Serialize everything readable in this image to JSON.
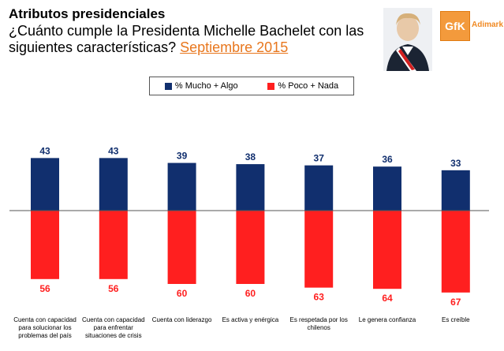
{
  "header": {
    "title": "Atributos presidenciales",
    "subtitle": "¿Cuánto cumple la Presidenta Michelle Bachelet con las siguientes características?",
    "date": "Septiembre 2015"
  },
  "logo": {
    "mark": "GfK",
    "name": "Adimark"
  },
  "colors": {
    "positive": "#112f6e",
    "negative": "#ff1f1f",
    "accent": "#e8771e"
  },
  "chart_data": {
    "type": "bar",
    "categories": [
      "Cuenta con capacidad para solucionar los problemas del país",
      "Cuenta con capacidad para enfrentar situaciones de crisis",
      "Cuenta con liderazgo",
      "Es activa y enérgica",
      "Es respetada por los chilenos",
      "Le genera confianza",
      "Es creíble"
    ],
    "category_lines": [
      [
        "Cuenta con capacidad",
        "para solucionar los",
        "problemas del país"
      ],
      [
        "Cuenta con capacidad",
        "para enfrentar",
        "situaciones de crisis"
      ],
      [
        "Cuenta con liderazgo"
      ],
      [
        "Es activa y enérgica"
      ],
      [
        "Es respetada por los",
        "chilenos"
      ],
      [
        "Le genera confianza"
      ],
      [
        "Es creíble"
      ]
    ],
    "series": [
      {
        "name": "% Mucho + Algo",
        "values": [
          43,
          43,
          39,
          38,
          37,
          36,
          33
        ],
        "color": "#112f6e",
        "direction": "up"
      },
      {
        "name": "% Poco + Nada",
        "values": [
          56,
          56,
          60,
          60,
          63,
          64,
          67
        ],
        "color": "#ff1f1f",
        "direction": "down"
      }
    ],
    "legend_position": "top-center",
    "grid": false
  }
}
